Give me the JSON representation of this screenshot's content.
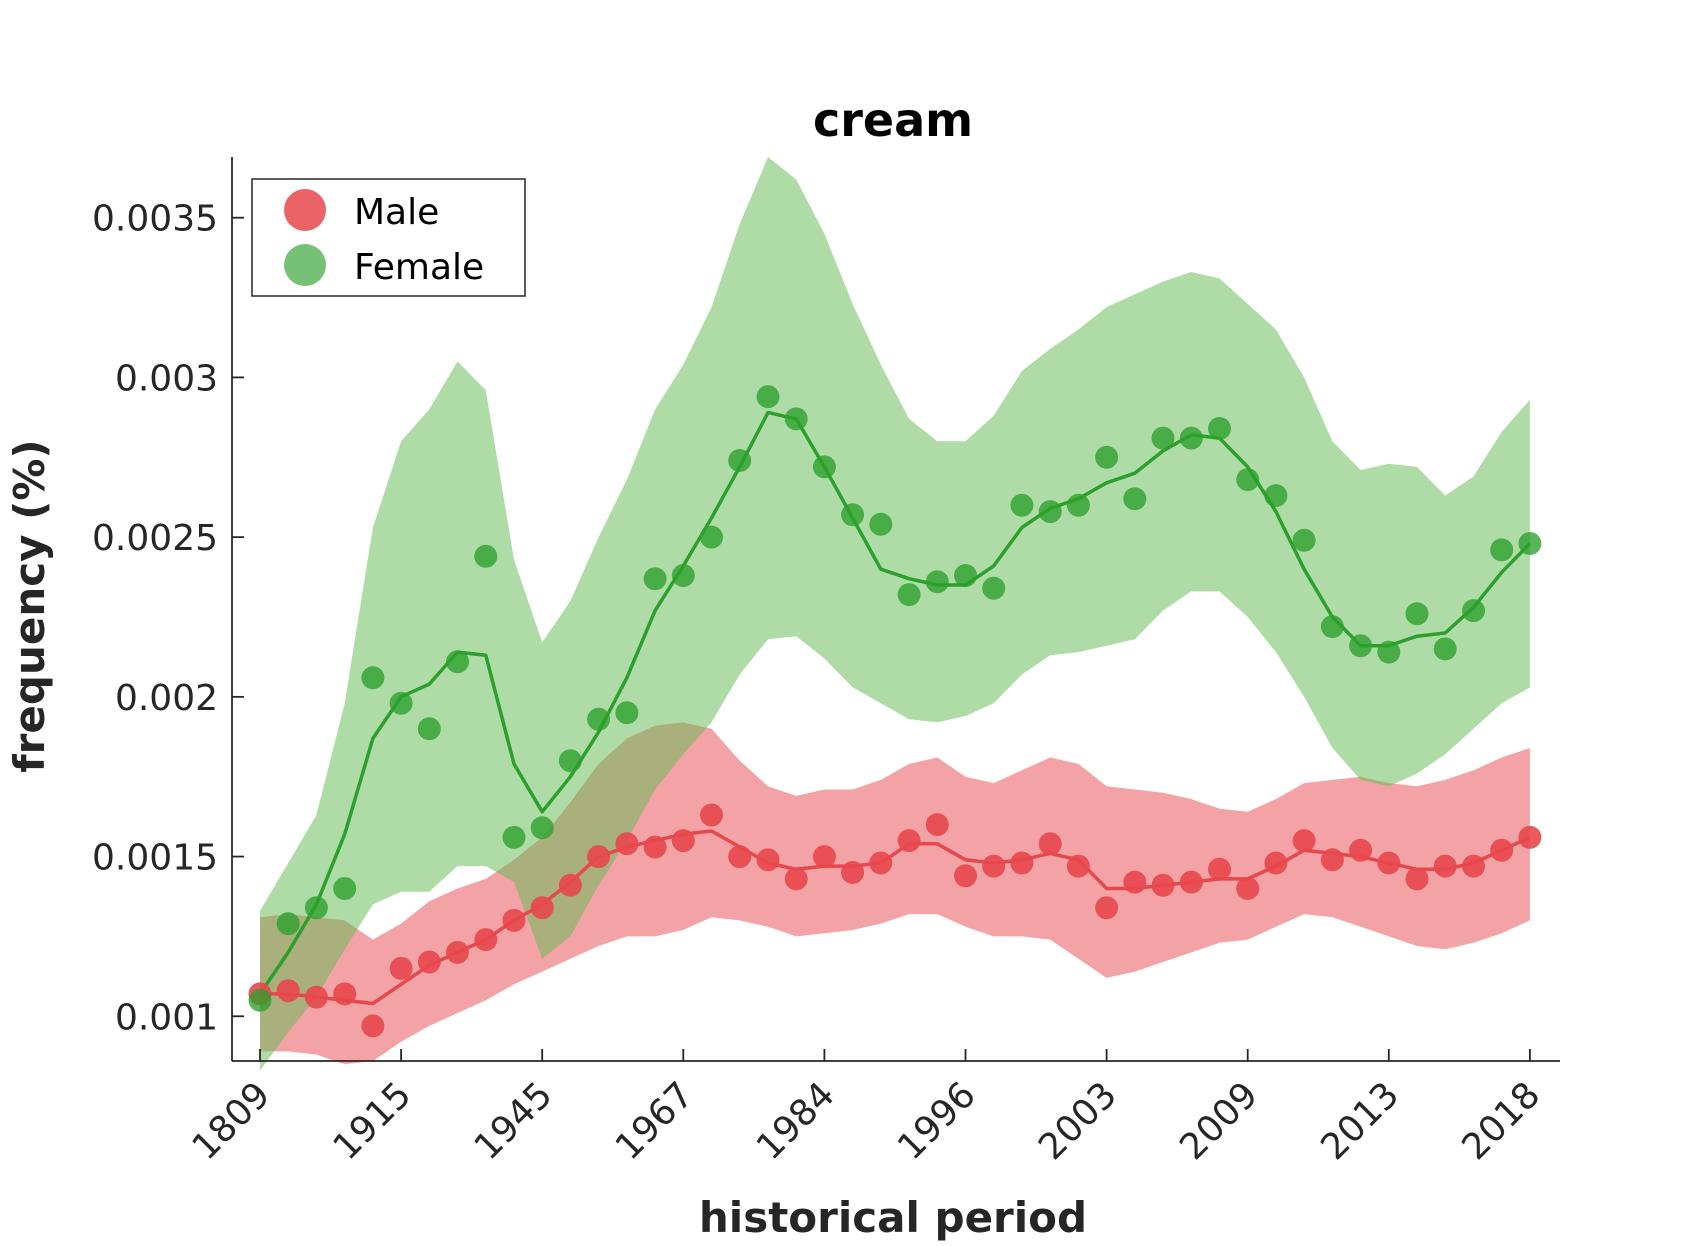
{
  "chart_data": {
    "type": "line",
    "title": "cream",
    "xlabel": "historical period",
    "ylabel": "frequency (%)",
    "ylim": [
      0.00086,
      0.00369
    ],
    "x_tick_labels": [
      "1809",
      "1915",
      "1945",
      "1967",
      "1984",
      "1996",
      "2003",
      "2009",
      "2013",
      "2018"
    ],
    "y_tick_labels": [
      "0.001",
      "0.0015",
      "0.002",
      "0.0025",
      "0.003",
      "0.0035"
    ],
    "y_tick_values": [
      0.001,
      0.0015,
      0.002,
      0.0025,
      0.003,
      0.0035
    ],
    "legend_position": "top-left",
    "grid": false,
    "n_points": 46,
    "series": [
      {
        "name": "Male",
        "color": "#e8474c",
        "points": [
          0.00107,
          0.00108,
          0.00106,
          0.00107,
          0.00097,
          0.00115,
          0.00117,
          0.0012,
          0.00124,
          0.0013,
          0.00134,
          0.00141,
          0.0015,
          0.00154,
          0.00153,
          0.00155,
          0.00163,
          0.0015,
          0.00149,
          0.00143,
          0.0015,
          0.00145,
          0.00148,
          0.00155,
          0.0016,
          0.00144,
          0.00147,
          0.00148,
          0.00154,
          0.00147,
          0.00134,
          0.00142,
          0.00141,
          0.00142,
          0.00146,
          0.0014,
          0.00148,
          0.00155,
          0.00149,
          0.00152,
          0.00148,
          0.00143,
          0.00147,
          0.00147,
          0.00152,
          0.00156
        ],
        "trend": [
          0.00107,
          0.00107,
          0.00106,
          0.00105,
          0.00104,
          0.0011,
          0.00116,
          0.0012,
          0.00124,
          0.0013,
          0.00135,
          0.00142,
          0.0015,
          0.00153,
          0.00155,
          0.00157,
          0.00158,
          0.00153,
          0.00148,
          0.00146,
          0.00147,
          0.00147,
          0.00148,
          0.00154,
          0.00154,
          0.00149,
          0.00148,
          0.00149,
          0.00151,
          0.00149,
          0.0014,
          0.0014,
          0.00141,
          0.00142,
          0.00143,
          0.00143,
          0.00147,
          0.00152,
          0.00151,
          0.0015,
          0.00148,
          0.00146,
          0.00146,
          0.00148,
          0.00152,
          0.00156
        ],
        "upper": [
          0.00131,
          0.00132,
          0.00131,
          0.0013,
          0.00124,
          0.00129,
          0.00136,
          0.0014,
          0.00143,
          0.00149,
          0.00156,
          0.00167,
          0.00179,
          0.00187,
          0.00191,
          0.00192,
          0.0019,
          0.0018,
          0.00172,
          0.00169,
          0.00171,
          0.00171,
          0.00174,
          0.00179,
          0.00181,
          0.00175,
          0.00173,
          0.00177,
          0.00181,
          0.00179,
          0.00172,
          0.00171,
          0.0017,
          0.00168,
          0.00165,
          0.00164,
          0.00168,
          0.00173,
          0.00174,
          0.00175,
          0.00173,
          0.00172,
          0.00174,
          0.00177,
          0.00181,
          0.00184
        ],
        "lower": [
          0.00089,
          0.00089,
          0.00088,
          0.00085,
          0.00086,
          0.00092,
          0.00097,
          0.00101,
          0.00105,
          0.0011,
          0.00114,
          0.00118,
          0.00122,
          0.00125,
          0.00125,
          0.00127,
          0.00131,
          0.0013,
          0.00128,
          0.00125,
          0.00126,
          0.00127,
          0.00129,
          0.00132,
          0.00132,
          0.00128,
          0.00125,
          0.00125,
          0.00124,
          0.00118,
          0.00112,
          0.00114,
          0.00117,
          0.0012,
          0.00123,
          0.00124,
          0.00128,
          0.00132,
          0.00131,
          0.00128,
          0.00125,
          0.00122,
          0.00121,
          0.00123,
          0.00126,
          0.0013
        ]
      },
      {
        "name": "Female",
        "color": "#2ca02c",
        "points": [
          0.00105,
          0.00129,
          0.00134,
          0.0014,
          0.00206,
          0.00198,
          0.0019,
          0.00211,
          0.00244,
          0.00156,
          0.00159,
          0.0018,
          0.00193,
          0.00195,
          0.00237,
          0.00238,
          0.0025,
          0.00274,
          0.00294,
          0.00287,
          0.00272,
          0.00257,
          0.00254,
          0.00232,
          0.00236,
          0.00238,
          0.00234,
          0.0026,
          0.00258,
          0.0026,
          0.00275,
          0.00262,
          0.00281,
          0.00281,
          0.00284,
          0.00268,
          0.00263,
          0.00249,
          0.00222,
          0.00216,
          0.00214,
          0.00226,
          0.00215,
          0.00227,
          0.00246,
          0.00248
        ],
        "trend": [
          0.00107,
          0.0012,
          0.00135,
          0.00157,
          0.00187,
          0.002,
          0.00204,
          0.00214,
          0.00213,
          0.00179,
          0.00164,
          0.00175,
          0.00189,
          0.00206,
          0.00227,
          0.00241,
          0.00256,
          0.00272,
          0.00289,
          0.00287,
          0.00272,
          0.00256,
          0.0024,
          0.00237,
          0.00235,
          0.00235,
          0.00241,
          0.00253,
          0.00259,
          0.00262,
          0.00267,
          0.0027,
          0.00277,
          0.00282,
          0.00281,
          0.00272,
          0.00258,
          0.0024,
          0.00225,
          0.00216,
          0.00216,
          0.00219,
          0.0022,
          0.00228,
          0.00239,
          0.00248
        ],
        "upper": [
          0.00133,
          0.00148,
          0.00163,
          0.00198,
          0.00253,
          0.0028,
          0.0029,
          0.00305,
          0.00296,
          0.00243,
          0.00217,
          0.0023,
          0.0025,
          0.00268,
          0.0029,
          0.00304,
          0.00322,
          0.00348,
          0.00369,
          0.00362,
          0.00345,
          0.00323,
          0.00304,
          0.00287,
          0.0028,
          0.0028,
          0.00288,
          0.00302,
          0.00309,
          0.00315,
          0.00322,
          0.00326,
          0.0033,
          0.00333,
          0.00331,
          0.00323,
          0.00315,
          0.003,
          0.0028,
          0.00271,
          0.00273,
          0.00272,
          0.00263,
          0.00269,
          0.00283,
          0.00293
        ],
        "lower": [
          0.00083,
          0.00095,
          0.00106,
          0.00121,
          0.00135,
          0.00139,
          0.00139,
          0.00147,
          0.00147,
          0.00142,
          0.00118,
          0.00125,
          0.00141,
          0.00155,
          0.00171,
          0.00182,
          0.00192,
          0.00207,
          0.00218,
          0.00219,
          0.00212,
          0.00203,
          0.00198,
          0.00193,
          0.00192,
          0.00194,
          0.00198,
          0.00207,
          0.00213,
          0.00214,
          0.00216,
          0.00218,
          0.00227,
          0.00233,
          0.00233,
          0.00225,
          0.00214,
          0.002,
          0.00184,
          0.00174,
          0.00172,
          0.00176,
          0.00182,
          0.0019,
          0.00198,
          0.00203
        ]
      }
    ]
  }
}
